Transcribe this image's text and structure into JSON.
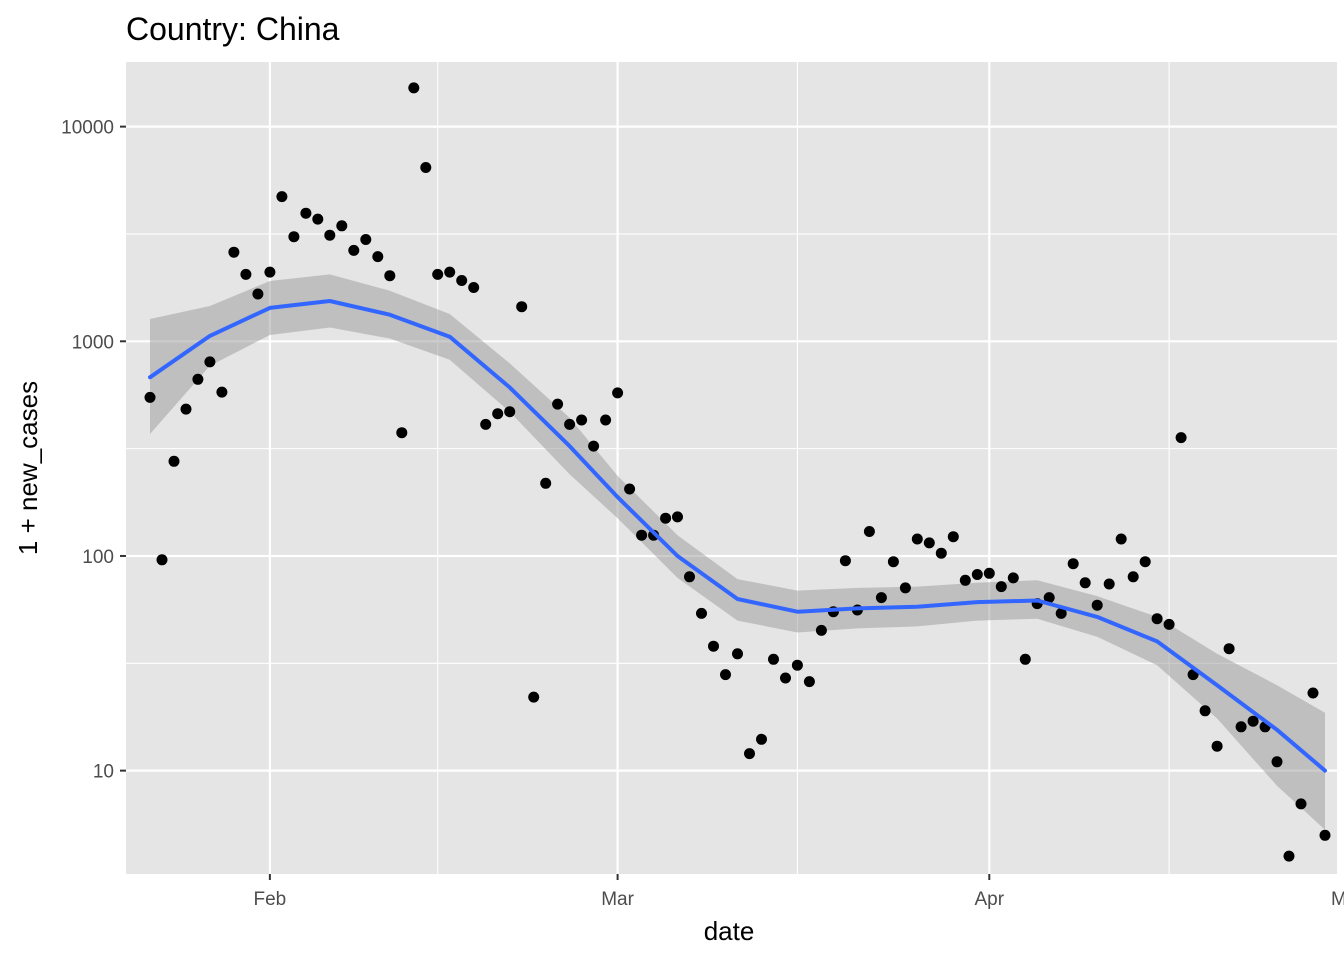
{
  "chart_data": {
    "type": "scatter",
    "title": "Country: China",
    "xlabel": "date",
    "ylabel": "1 + new_cases",
    "y_scale": "log10",
    "ylim": [
      3.3,
      20000
    ],
    "xlim": [
      "2020-01-20",
      "2020-04-30"
    ],
    "x_ticks": [
      {
        "label": "Feb",
        "date": "2020-02-01"
      },
      {
        "label": "Mar",
        "date": "2020-03-01"
      },
      {
        "label": "Apr",
        "date": "2020-04-01"
      },
      {
        "label": "May",
        "date": "2020-05-01"
      }
    ],
    "y_ticks": [
      {
        "label": "10",
        "value": 10
      },
      {
        "label": "100",
        "value": 100
      },
      {
        "label": "1000",
        "value": 1000
      },
      {
        "label": "10000",
        "value": 10000
      }
    ],
    "grid": true,
    "colors": {
      "panel": "#e5e5e5",
      "grid": "#ffffff",
      "points": "#000000",
      "smooth_line": "#3366ff",
      "confidence_band": "#999999"
    },
    "series": [
      {
        "type": "scatter",
        "x": [
          "2020-01-22",
          "2020-01-23",
          "2020-01-24",
          "2020-01-25",
          "2020-01-26",
          "2020-01-27",
          "2020-01-28",
          "2020-01-29",
          "2020-01-30",
          "2020-01-31",
          "2020-02-01",
          "2020-02-02",
          "2020-02-03",
          "2020-02-04",
          "2020-02-05",
          "2020-02-06",
          "2020-02-07",
          "2020-02-08",
          "2020-02-09",
          "2020-02-10",
          "2020-02-11",
          "2020-02-12",
          "2020-02-13",
          "2020-02-14",
          "2020-02-15",
          "2020-02-16",
          "2020-02-17",
          "2020-02-18",
          "2020-02-19",
          "2020-02-20",
          "2020-02-21",
          "2020-02-22",
          "2020-02-23",
          "2020-02-24",
          "2020-02-25",
          "2020-02-26",
          "2020-02-27",
          "2020-02-28",
          "2020-02-29",
          "2020-03-01",
          "2020-03-02",
          "2020-03-03",
          "2020-03-04",
          "2020-03-05",
          "2020-03-06",
          "2020-03-07",
          "2020-03-08",
          "2020-03-09",
          "2020-03-10",
          "2020-03-11",
          "2020-03-12",
          "2020-03-13",
          "2020-03-14",
          "2020-03-15",
          "2020-03-16",
          "2020-03-17",
          "2020-03-18",
          "2020-03-19",
          "2020-03-20",
          "2020-03-21",
          "2020-03-22",
          "2020-03-23",
          "2020-03-24",
          "2020-03-25",
          "2020-03-26",
          "2020-03-27",
          "2020-03-28",
          "2020-03-29",
          "2020-03-30",
          "2020-03-31",
          "2020-04-01",
          "2020-04-02",
          "2020-04-03",
          "2020-04-04",
          "2020-04-05",
          "2020-04-06",
          "2020-04-07",
          "2020-04-08",
          "2020-04-09",
          "2020-04-10",
          "2020-04-11",
          "2020-04-12",
          "2020-04-13",
          "2020-04-14",
          "2020-04-15",
          "2020-04-16",
          "2020-04-17",
          "2020-04-18",
          "2020-04-19",
          "2020-04-20",
          "2020-04-21",
          "2020-04-22",
          "2020-04-23",
          "2020-04-24",
          "2020-04-25",
          "2020-04-26",
          "2020-04-27",
          "2020-04-28",
          "2020-04-29"
        ],
        "y": [
          548,
          96,
          276,
          483,
          665,
          802,
          580,
          2600,
          2050,
          1660,
          2100,
          4720,
          3070,
          3950,
          3710,
          3120,
          3450,
          2650,
          2980,
          2480,
          2020,
          375,
          15150,
          6450,
          2050,
          2100,
          1920,
          1780,
          410,
          460,
          470,
          1450,
          22,
          218,
          510,
          410,
          430,
          325,
          430,
          575,
          205,
          125,
          125,
          150,
          152,
          80,
          54,
          38,
          28,
          35,
          12,
          14,
          33,
          27,
          31,
          26,
          45,
          55,
          95,
          56,
          130,
          64,
          94,
          71,
          120,
          115,
          103,
          123,
          77,
          82,
          83,
          72,
          79,
          33,
          60,
          64,
          54,
          92,
          75,
          59,
          74,
          120,
          80,
          94,
          51,
          48,
          356,
          28,
          19,
          13,
          37,
          16,
          17,
          16,
          11,
          4,
          7,
          23,
          5
        ]
      },
      {
        "type": "smooth",
        "x": [
          "2020-01-22",
          "2020-01-27",
          "2020-02-01",
          "2020-02-06",
          "2020-02-11",
          "2020-02-16",
          "2020-02-21",
          "2020-02-26",
          "2020-03-01",
          "2020-03-06",
          "2020-03-11",
          "2020-03-16",
          "2020-03-21",
          "2020-03-26",
          "2020-03-31",
          "2020-04-05",
          "2020-04-10",
          "2020-04-15",
          "2020-04-20",
          "2020-04-25",
          "2020-04-29"
        ],
        "y": [
          680,
          1060,
          1430,
          1540,
          1330,
          1050,
          610,
          325,
          188,
          100,
          63,
          55,
          57,
          58,
          61,
          62,
          52,
          40,
          25,
          15.5,
          10
        ],
        "lower": [
          370,
          770,
          1070,
          1160,
          1030,
          820,
          470,
          240,
          150,
          79,
          50,
          44,
          46,
          47,
          50,
          51,
          42,
          31,
          17.5,
          8.5,
          5.3
        ],
        "upper": [
          1270,
          1460,
          1910,
          2050,
          1720,
          1340,
          790,
          440,
          236,
          125,
          78,
          69,
          71,
          72,
          75,
          77,
          65,
          52,
          35,
          25,
          18.6
        ]
      }
    ]
  }
}
